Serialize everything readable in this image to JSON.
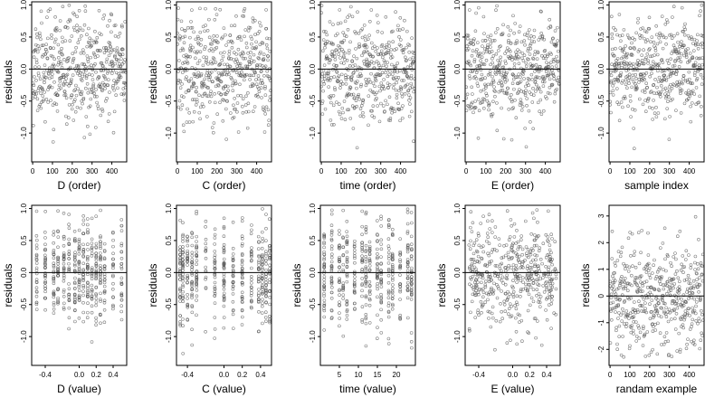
{
  "chart_data": [
    {
      "type": "scatter",
      "xlabel": "D (order)",
      "ylabel": "residuals",
      "xlim": [
        -5,
        475
      ],
      "ylim": [
        -1.45,
        1.05
      ],
      "xticks": [
        0,
        100,
        200,
        300,
        400
      ],
      "yticks": [
        -1.0,
        -0.5,
        0.0,
        0.5,
        1.0
      ],
      "ytick_labels": [
        "-1.0",
        "-0.5",
        "0.0",
        "0.5",
        "1.0"
      ],
      "hline": 0,
      "x_kind": "order",
      "sd": 0.4,
      "seed": 11
    },
    {
      "type": "scatter",
      "xlabel": "C (order)",
      "ylabel": "residuals",
      "xlim": [
        -5,
        475
      ],
      "ylim": [
        -1.45,
        1.05
      ],
      "xticks": [
        0,
        100,
        200,
        300,
        400
      ],
      "yticks": [
        -1.0,
        -0.5,
        0.0,
        0.5,
        1.0
      ],
      "ytick_labels": [
        "-1.0",
        "-0.5",
        "0.0",
        "0.5",
        "1.0"
      ],
      "hline": 0,
      "x_kind": "order",
      "sd": 0.4,
      "seed": 12
    },
    {
      "type": "scatter",
      "xlabel": "time (order)",
      "ylabel": "residuals",
      "xlim": [
        -5,
        475
      ],
      "ylim": [
        -1.45,
        1.05
      ],
      "xticks": [
        0,
        100,
        200,
        300,
        400
      ],
      "yticks": [
        -1.0,
        -0.5,
        0.0,
        0.5,
        1.0
      ],
      "ytick_labels": [
        "-1.0",
        "-0.5",
        "0.0",
        "0.5",
        "1.0"
      ],
      "hline": 0,
      "x_kind": "order",
      "sd": 0.4,
      "seed": 13
    },
    {
      "type": "scatter",
      "xlabel": "E (order)",
      "ylabel": "residuals",
      "xlim": [
        -5,
        475
      ],
      "ylim": [
        -1.45,
        1.05
      ],
      "xticks": [
        0,
        100,
        200,
        300,
        400
      ],
      "yticks": [
        -1.0,
        -0.5,
        0.0,
        0.5,
        1.0
      ],
      "ytick_labels": [
        "-1.0",
        "-0.5",
        "0.0",
        "0.5",
        "1.0"
      ],
      "hline": 0,
      "x_kind": "order",
      "sd": 0.4,
      "seed": 14
    },
    {
      "type": "scatter",
      "xlabel": "sample index",
      "ylabel": "residuals",
      "xlim": [
        -5,
        475
      ],
      "ylim": [
        -1.45,
        1.05
      ],
      "xticks": [
        0,
        100,
        200,
        300,
        400
      ],
      "yticks": [
        -1.0,
        -0.5,
        0.0,
        0.5,
        1.0
      ],
      "ytick_labels": [
        "-1.0",
        "-0.5",
        "0.0",
        "0.5",
        "1.0"
      ],
      "hline": 0,
      "x_kind": "order",
      "sd": 0.4,
      "seed": 15
    },
    {
      "type": "scatter",
      "xlabel": "D (value)",
      "ylabel": "residuals",
      "xlim": [
        -0.56,
        0.56
      ],
      "ylim": [
        -1.45,
        1.05
      ],
      "xticks": [
        -0.4,
        0.0,
        0.2,
        0.4
      ],
      "xtick_labels": [
        "-0.4",
        "0.0",
        "0.2",
        "0.4"
      ],
      "yticks": [
        -1.0,
        -0.5,
        0.0,
        0.5,
        1.0
      ],
      "ytick_labels": [
        "-1.0",
        "-0.5",
        "0.0",
        "0.5",
        "1.0"
      ],
      "hline": 0,
      "x_kind": "columns",
      "columns": [
        -0.5,
        -0.4,
        -0.3,
        -0.25,
        -0.18,
        -0.12,
        -0.05,
        0.0,
        0.05,
        0.1,
        0.15,
        0.2,
        0.25,
        0.3,
        0.4,
        0.5
      ],
      "sd": 0.4,
      "seed": 21
    },
    {
      "type": "scatter",
      "xlabel": "C (value)",
      "ylabel": "residuals",
      "xlim": [
        -0.52,
        0.52
      ],
      "ylim": [
        -1.45,
        1.05
      ],
      "xticks": [
        -0.4,
        0.0,
        0.2,
        0.4
      ],
      "xtick_labels": [
        "-0.4",
        "0.0",
        "0.2",
        "0.4"
      ],
      "yticks": [
        -1.0,
        -0.5,
        0.0,
        0.5,
        1.0
      ],
      "ytick_labels": [
        "-1.0",
        "-0.5",
        "0.0",
        "0.5",
        "1.0"
      ],
      "hline": 0,
      "x_kind": "columns",
      "columns": [
        -0.48,
        -0.45,
        -0.4,
        -0.35,
        -0.3,
        -0.2,
        -0.1,
        0.0,
        0.1,
        0.2,
        0.3,
        0.38,
        0.42,
        0.46,
        0.5
      ],
      "sd": 0.4,
      "seed": 22
    },
    {
      "type": "scatter",
      "xlabel": "time (value)",
      "ylabel": "residuals",
      "xlim": [
        0,
        25
      ],
      "ylim": [
        -1.45,
        1.05
      ],
      "xticks": [
        5,
        10,
        15,
        20
      ],
      "yticks": [
        -1.0,
        -0.5,
        0.0,
        0.5,
        1.0
      ],
      "ytick_labels": [
        "-1.0",
        "-0.5",
        "0.0",
        "0.5",
        "1.0"
      ],
      "hline": 0,
      "x_kind": "columns",
      "columns": [
        1,
        3,
        5,
        6,
        7,
        9,
        11,
        12,
        13,
        15,
        16,
        18,
        19,
        21,
        23,
        24
      ],
      "sd": 0.4,
      "seed": 23
    },
    {
      "type": "scatter",
      "xlabel": "E (value)",
      "ylabel": "residuals",
      "xlim": [
        -0.56,
        0.56
      ],
      "ylim": [
        -1.45,
        1.05
      ],
      "xticks": [
        -0.4,
        0.0,
        0.2,
        0.4
      ],
      "xtick_labels": [
        "-0.4",
        "0.0",
        "0.2",
        "0.4"
      ],
      "yticks": [
        -1.0,
        -0.5,
        0.0,
        0.5,
        1.0
      ],
      "ytick_labels": [
        "-1.0",
        "-0.5",
        "0.0",
        "0.5",
        "1.0"
      ],
      "hline": 0,
      "x_kind": "uniform",
      "sd": 0.4,
      "seed": 24
    },
    {
      "type": "scatter",
      "xlabel": "randam example",
      "ylabel": "residuals",
      "xlim": [
        -5,
        475
      ],
      "ylim": [
        -2.6,
        3.4
      ],
      "xticks": [
        0,
        100,
        200,
        300,
        400
      ],
      "yticks": [
        -2,
        -1,
        0,
        1,
        2,
        3
      ],
      "ytick_labels": [
        "-2",
        "-1",
        "0",
        "1",
        "2",
        "3"
      ],
      "hline": 0,
      "x_kind": "order",
      "sd": 1.0,
      "seed": 30
    }
  ]
}
